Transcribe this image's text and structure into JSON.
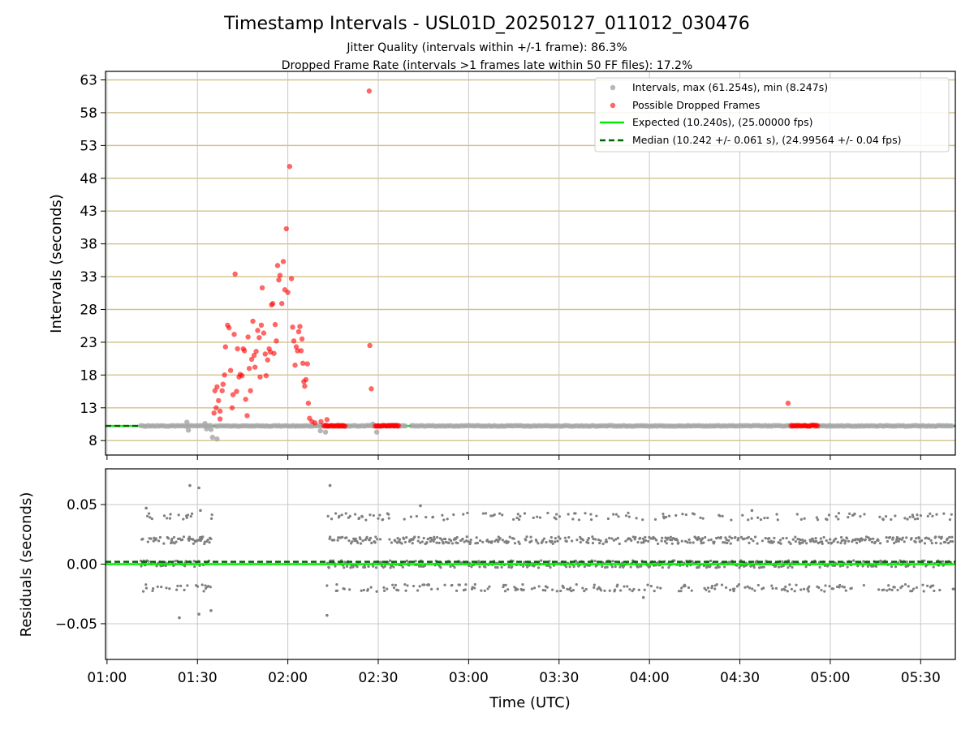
{
  "figure": {
    "title": "Timestamp Intervals - USL01D_20250127_011012_030476",
    "subtitle_line1": "Jitter Quality (intervals within +/-1 frame): 86.3%",
    "subtitle_line2": "Dropped Frame Rate (intervals >1 frames late within 50 FF files): 17.2%"
  },
  "colors": {
    "interval_points": "#a9a9a9",
    "dropped_points": "#ff0000",
    "expected_line": "#00ee00",
    "median_line": "#006400",
    "h_grid": "#d2c08a",
    "v_grid": "#c8c8c8",
    "residual_points": "#7f7f7f"
  },
  "chart_data": [
    {
      "type": "scatter",
      "ylabel": "Intervals (seconds)",
      "x_unit": "minutes after 01:00 UTC",
      "xlim": [
        -0.5,
        281.5
      ],
      "ylim": [
        5.8,
        64.3
      ],
      "yticks": [
        8,
        13,
        18,
        23,
        28,
        33,
        38,
        43,
        48,
        53,
        58,
        63
      ],
      "grid": true,
      "legend_position": "top-right",
      "legend": [
        "Intervals, max (61.254s), min (8.247s)",
        "Possible Dropped Frames",
        "Expected (10.240s), (25.00000 fps)",
        "Median (10.242 +/- 0.061 s), (24.99564 +/- 0.04 fps)"
      ],
      "expected_interval": 10.24,
      "median_interval": 10.242,
      "baseline_intervals": {
        "value": 10.24,
        "segments": [
          [
            11.2,
            35.0
          ],
          [
            36.0,
            73.5
          ],
          [
            77.0,
            90.0
          ],
          [
            93.0,
            99.0
          ],
          [
            101.0,
            227.0
          ],
          [
            236.0,
            281.0
          ]
        ]
      },
      "dropped_baseline": {
        "value": 10.27,
        "segments": [
          [
            72.0,
            79.0
          ],
          [
            89.0,
            97.0
          ],
          [
            227.0,
            236.0
          ]
        ]
      },
      "intervals_outliers": [
        {
          "x": 26.5,
          "y": 10.8
        },
        {
          "x": 27.0,
          "y": 9.6
        },
        {
          "x": 32.5,
          "y": 10.6
        },
        {
          "x": 33.0,
          "y": 9.8
        },
        {
          "x": 34.5,
          "y": 9.7
        },
        {
          "x": 35.0,
          "y": 8.5
        },
        {
          "x": 36.5,
          "y": 8.25
        },
        {
          "x": 70.8,
          "y": 9.5
        },
        {
          "x": 72.5,
          "y": 9.3
        },
        {
          "x": 88.2,
          "y": 10.5
        },
        {
          "x": 89.5,
          "y": 9.3
        }
      ],
      "dropped_points": [
        {
          "x": 35.5,
          "y": 12.2
        },
        {
          "x": 36.2,
          "y": 13.0
        },
        {
          "x": 35.8,
          "y": 15.6
        },
        {
          "x": 36.5,
          "y": 16.2
        },
        {
          "x": 37.0,
          "y": 14.1
        },
        {
          "x": 37.5,
          "y": 12.5
        },
        {
          "x": 37.5,
          "y": 11.3
        },
        {
          "x": 38.2,
          "y": 15.6
        },
        {
          "x": 38.5,
          "y": 16.6
        },
        {
          "x": 39.0,
          "y": 18.0
        },
        {
          "x": 39.3,
          "y": 22.3
        },
        {
          "x": 40.0,
          "y": 25.6
        },
        {
          "x": 40.5,
          "y": 25.2
        },
        {
          "x": 41.0,
          "y": 18.7
        },
        {
          "x": 41.5,
          "y": 13.0
        },
        {
          "x": 41.8,
          "y": 15.0
        },
        {
          "x": 42.2,
          "y": 24.2
        },
        {
          "x": 42.5,
          "y": 33.4
        },
        {
          "x": 43.0,
          "y": 15.5
        },
        {
          "x": 43.3,
          "y": 22.0
        },
        {
          "x": 43.8,
          "y": 17.7
        },
        {
          "x": 44.2,
          "y": 18.1
        },
        {
          "x": 44.8,
          "y": 17.9
        },
        {
          "x": 45.2,
          "y": 22.0
        },
        {
          "x": 45.6,
          "y": 21.7
        },
        {
          "x": 46.0,
          "y": 14.3
        },
        {
          "x": 46.5,
          "y": 11.8
        },
        {
          "x": 46.8,
          "y": 23.8
        },
        {
          "x": 47.2,
          "y": 19.0
        },
        {
          "x": 47.6,
          "y": 15.6
        },
        {
          "x": 48.0,
          "y": 20.4
        },
        {
          "x": 48.4,
          "y": 26.2
        },
        {
          "x": 48.8,
          "y": 21.0
        },
        {
          "x": 49.1,
          "y": 19.2
        },
        {
          "x": 49.5,
          "y": 21.6
        },
        {
          "x": 50.0,
          "y": 24.8
        },
        {
          "x": 50.5,
          "y": 23.7
        },
        {
          "x": 50.8,
          "y": 17.7
        },
        {
          "x": 51.2,
          "y": 25.6
        },
        {
          "x": 51.5,
          "y": 31.3
        },
        {
          "x": 52.0,
          "y": 24.4
        },
        {
          "x": 52.5,
          "y": 21.2
        },
        {
          "x": 52.8,
          "y": 17.9
        },
        {
          "x": 53.3,
          "y": 20.3
        },
        {
          "x": 53.8,
          "y": 22.0
        },
        {
          "x": 54.2,
          "y": 21.5
        },
        {
          "x": 54.6,
          "y": 28.7
        },
        {
          "x": 55.0,
          "y": 28.9
        },
        {
          "x": 55.4,
          "y": 21.3
        },
        {
          "x": 55.8,
          "y": 25.7
        },
        {
          "x": 56.2,
          "y": 23.2
        },
        {
          "x": 56.6,
          "y": 34.7
        },
        {
          "x": 57.0,
          "y": 32.5
        },
        {
          "x": 57.4,
          "y": 33.2
        },
        {
          "x": 58.0,
          "y": 28.9
        },
        {
          "x": 58.5,
          "y": 35.3
        },
        {
          "x": 59.0,
          "y": 31.0
        },
        {
          "x": 59.5,
          "y": 40.3
        },
        {
          "x": 60.0,
          "y": 30.6
        },
        {
          "x": 60.6,
          "y": 49.8
        },
        {
          "x": 61.2,
          "y": 32.7
        },
        {
          "x": 61.6,
          "y": 25.3
        },
        {
          "x": 62.0,
          "y": 23.2
        },
        {
          "x": 62.4,
          "y": 19.5
        },
        {
          "x": 62.8,
          "y": 22.3
        },
        {
          "x": 63.2,
          "y": 21.7
        },
        {
          "x": 63.6,
          "y": 24.6
        },
        {
          "x": 64.0,
          "y": 25.4
        },
        {
          "x": 64.4,
          "y": 21.7
        },
        {
          "x": 64.7,
          "y": 23.5
        },
        {
          "x": 65.0,
          "y": 19.8
        },
        {
          "x": 65.3,
          "y": 17.0
        },
        {
          "x": 65.6,
          "y": 16.3
        },
        {
          "x": 66.0,
          "y": 17.3
        },
        {
          "x": 66.5,
          "y": 19.7
        },
        {
          "x": 66.8,
          "y": 13.7
        },
        {
          "x": 67.2,
          "y": 11.4
        },
        {
          "x": 68.0,
          "y": 10.9
        },
        {
          "x": 69.0,
          "y": 10.7
        },
        {
          "x": 71.0,
          "y": 10.9
        },
        {
          "x": 73.0,
          "y": 11.2
        },
        {
          "x": 87.0,
          "y": 61.3
        },
        {
          "x": 87.2,
          "y": 22.5
        },
        {
          "x": 87.7,
          "y": 15.9
        },
        {
          "x": 226.0,
          "y": 13.7
        }
      ]
    },
    {
      "type": "scatter",
      "xlabel": "Time (UTC)",
      "ylabel": "Residuals (seconds)",
      "x_unit": "minutes after 01:00 UTC",
      "xlim": [
        -0.5,
        281.5
      ],
      "ylim": [
        -0.08,
        0.08
      ],
      "yticks": [
        -0.05,
        0.0,
        0.05
      ],
      "ytick_labels": [
        "−0.05",
        "0.00",
        "0.05"
      ],
      "xticks": [
        0,
        30,
        60,
        90,
        120,
        150,
        180,
        210,
        240,
        270
      ],
      "xtick_labels": [
        "01:00",
        "01:30",
        "02:00",
        "02:30",
        "03:00",
        "03:30",
        "04:00",
        "04:30",
        "05:00",
        "05:30"
      ],
      "grid": true,
      "expected_residual": 0.0,
      "median_residual": 0.002,
      "residual_clusters": {
        "x_segments": [
          [
            11.2,
            35.0
          ],
          [
            73.0,
            281.0
          ]
        ],
        "levels": [
          -0.02,
          0.0,
          0.02,
          0.04
        ],
        "typical_step_minutes": 0.17
      },
      "residual_extremes": [
        {
          "x": 27.5,
          "y": 0.066
        },
        {
          "x": 30.5,
          "y": 0.064
        },
        {
          "x": 24.0,
          "y": -0.045
        },
        {
          "x": 30.5,
          "y": -0.042
        },
        {
          "x": 34.5,
          "y": -0.039
        },
        {
          "x": 74.0,
          "y": 0.066
        },
        {
          "x": 73.0,
          "y": -0.043
        },
        {
          "x": 13.0,
          "y": 0.047
        },
        {
          "x": 31.0,
          "y": 0.045
        },
        {
          "x": 104.0,
          "y": 0.049
        },
        {
          "x": 214.0,
          "y": 0.045
        },
        {
          "x": 178.0,
          "y": -0.028
        }
      ]
    }
  ]
}
